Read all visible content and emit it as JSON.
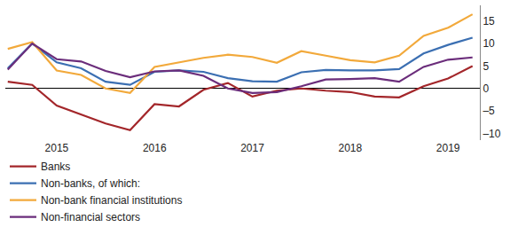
{
  "chart_data": {
    "type": "line",
    "categories": [
      null,
      null,
      "2015",
      null,
      null,
      null,
      "2016",
      null,
      null,
      null,
      "2017",
      null,
      null,
      null,
      "2018",
      null,
      null,
      null,
      "2019",
      null
    ],
    "series": [
      {
        "name": "Banks",
        "color": "#a3262a",
        "values": [
          1.5,
          0.8,
          -3.8,
          -5.8,
          -7.8,
          -9.3,
          -3.5,
          -4.0,
          -0.3,
          1.2,
          -1.8,
          -0.5,
          0.0,
          -0.5,
          -0.8,
          -1.8,
          -2.0,
          0.5,
          2.2,
          5.0
        ]
      },
      {
        "name": "Non-banks, of which:",
        "color": "#3b6fb2",
        "values": [
          4.5,
          10.0,
          5.8,
          4.5,
          1.5,
          0.8,
          3.7,
          4.0,
          3.7,
          2.3,
          1.6,
          1.5,
          3.6,
          4.1,
          4.0,
          4.0,
          4.3,
          7.8,
          9.7,
          11.3
        ]
      },
      {
        "name": "Non-bank financial institutions",
        "color": "#f2a93b",
        "values": [
          8.8,
          10.3,
          4.0,
          3.0,
          0.0,
          -1.0,
          4.8,
          5.8,
          6.8,
          7.5,
          7.0,
          5.7,
          8.3,
          7.3,
          6.3,
          5.8,
          7.3,
          11.7,
          13.5,
          16.5
        ]
      },
      {
        "name": "Non-financial sectors",
        "color": "#6b2d7b",
        "values": [
          4.2,
          10.0,
          6.5,
          6.0,
          3.9,
          2.5,
          3.8,
          4.0,
          2.8,
          0.0,
          -1.0,
          -0.8,
          0.5,
          2.0,
          2.1,
          2.3,
          1.5,
          4.8,
          6.4,
          6.9
        ]
      }
    ],
    "ylim": [
      -11.5,
      18.5
    ],
    "yticks": [
      {
        "value": -10,
        "label": "–10"
      },
      {
        "value": -5,
        "label": "–5"
      },
      0,
      5,
      10,
      15
    ],
    "grid": false,
    "legend": "bottom"
  }
}
